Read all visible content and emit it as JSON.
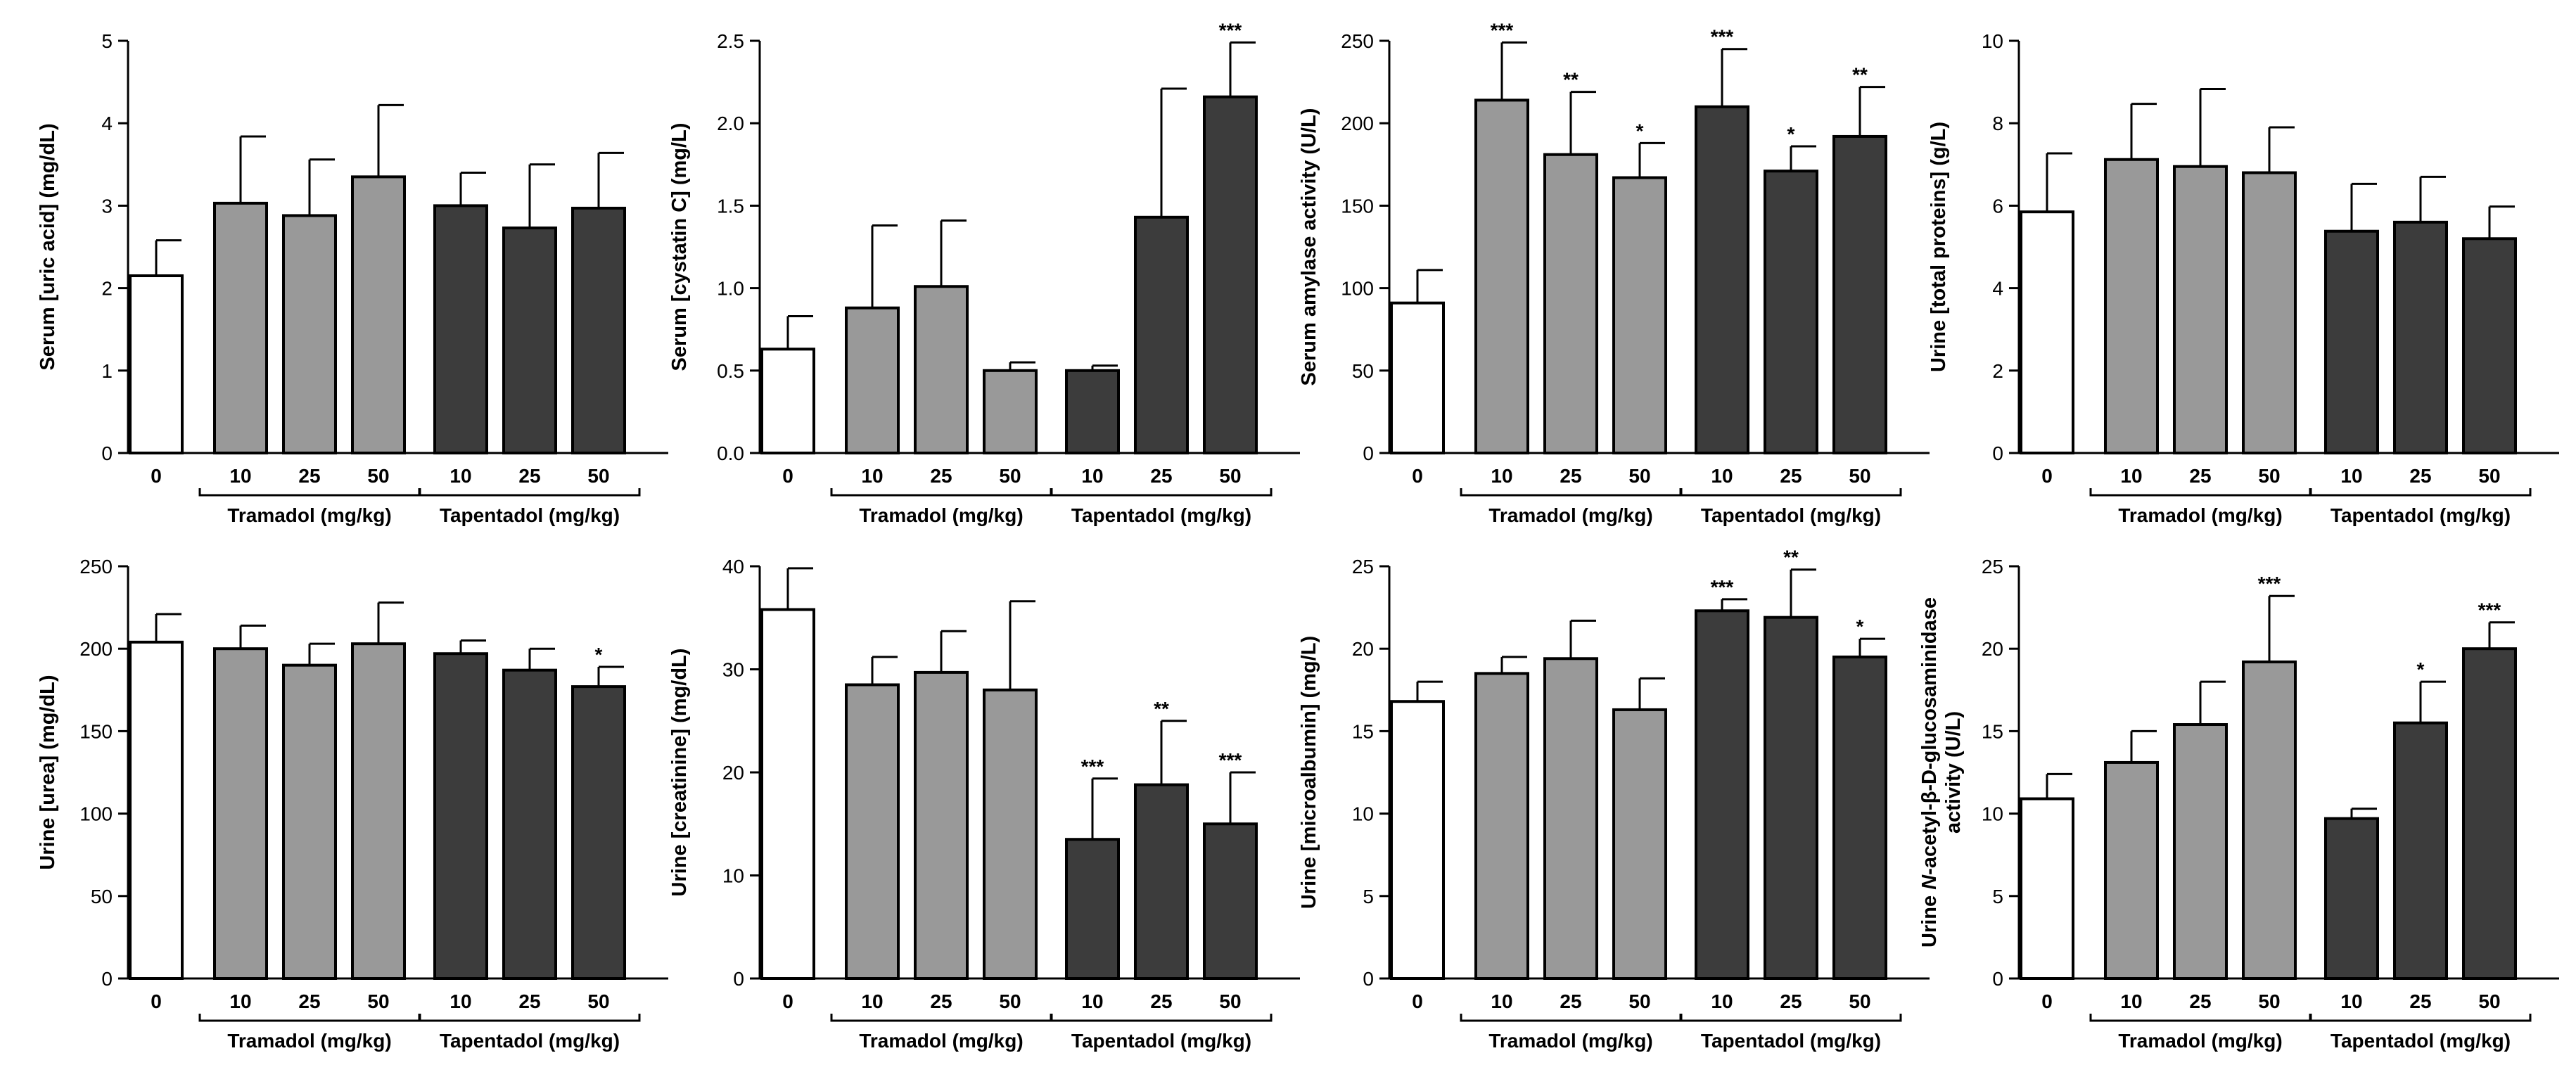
{
  "colors": {
    "control": "#ffffff",
    "tramadol": "#999999",
    "tapentadol": "#3c3c3c",
    "stroke": "#000000"
  },
  "chart_data": [
    {
      "type": "bar",
      "ylabel": "Serum [uric acid] (mg/dL)",
      "ylim": [
        0,
        5
      ],
      "yticks": [
        0,
        1,
        2,
        3,
        4,
        5
      ],
      "categories": [
        "0",
        "10",
        "25",
        "50",
        "10",
        "25",
        "50"
      ],
      "groups": [
        "control",
        "tramadol",
        "tramadol",
        "tramadol",
        "tapentadol",
        "tapentadol",
        "tapentadol"
      ],
      "values": [
        2.15,
        3.03,
        2.88,
        3.35,
        3.0,
        2.73,
        2.97
      ],
      "errors": [
        0.43,
        0.81,
        0.68,
        0.87,
        0.4,
        0.77,
        0.67
      ],
      "significance": [
        "",
        "",
        "",
        "",
        "",
        "",
        ""
      ],
      "group_labels": [
        "Tramadol (mg/kg)",
        "Tapentadol (mg/kg)"
      ]
    },
    {
      "type": "bar",
      "ylabel": "Serum [cystatin C] (mg/L)",
      "ylim": [
        0,
        2.5
      ],
      "yticks": [
        "0.0",
        "0.5",
        "1.0",
        "1.5",
        "2.0",
        "2.5"
      ],
      "categories": [
        "0",
        "10",
        "25",
        "50",
        "10",
        "25",
        "50"
      ],
      "groups": [
        "control",
        "tramadol",
        "tramadol",
        "tramadol",
        "tapentadol",
        "tapentadol",
        "tapentadol"
      ],
      "values": [
        0.63,
        0.88,
        1.01,
        0.5,
        0.5,
        1.43,
        2.16
      ],
      "errors": [
        0.2,
        0.5,
        0.4,
        0.05,
        0.03,
        0.78,
        0.33
      ],
      "significance": [
        "",
        "",
        "",
        "",
        "",
        "",
        "***"
      ],
      "group_labels": [
        "Tramadol (mg/kg)",
        "Tapentadol (mg/kg)"
      ]
    },
    {
      "type": "bar",
      "ylabel": "Serum amylase activity (U/L)",
      "ylim": [
        0,
        250
      ],
      "yticks": [
        0,
        50,
        100,
        150,
        200,
        250
      ],
      "categories": [
        "0",
        "10",
        "25",
        "50",
        "10",
        "25",
        "50"
      ],
      "groups": [
        "control",
        "tramadol",
        "tramadol",
        "tramadol",
        "tapentadol",
        "tapentadol",
        "tapentadol"
      ],
      "values": [
        91,
        214,
        181,
        167,
        210,
        171,
        192
      ],
      "errors": [
        20,
        35,
        38,
        21,
        35,
        15,
        30
      ],
      "significance": [
        "",
        "***",
        "**",
        "*",
        "***",
        "*",
        "**"
      ],
      "group_labels": [
        "Tramadol (mg/kg)",
        "Tapentadol (mg/kg)"
      ]
    },
    {
      "type": "bar",
      "ylabel": "Urine [total proteins] (g/L)",
      "ylim": [
        0,
        10
      ],
      "yticks": [
        0,
        2,
        4,
        6,
        8,
        10
      ],
      "categories": [
        "0",
        "10",
        "25",
        "50",
        "10",
        "25",
        "50"
      ],
      "groups": [
        "control",
        "tramadol",
        "tramadol",
        "tramadol",
        "tapentadol",
        "tapentadol",
        "tapentadol"
      ],
      "values": [
        5.85,
        7.12,
        6.95,
        6.8,
        5.38,
        5.6,
        5.2
      ],
      "errors": [
        1.42,
        1.35,
        1.88,
        1.1,
        1.15,
        1.1,
        0.78
      ],
      "significance": [
        "",
        "",
        "",
        "",
        "",
        "",
        ""
      ],
      "group_labels": [
        "Tramadol (mg/kg)",
        "Tapentadol (mg/kg)"
      ]
    },
    {
      "type": "bar",
      "ylabel": "Urine [urea] (mg/dL)",
      "ylim": [
        0,
        250
      ],
      "yticks": [
        0,
        50,
        100,
        150,
        200,
        250
      ],
      "categories": [
        "0",
        "10",
        "25",
        "50",
        "10",
        "25",
        "50"
      ],
      "groups": [
        "control",
        "tramadol",
        "tramadol",
        "tramadol",
        "tapentadol",
        "tapentadol",
        "tapentadol"
      ],
      "values": [
        204,
        200,
        190,
        203,
        197,
        187,
        177
      ],
      "errors": [
        17,
        14,
        13,
        25,
        8,
        13,
        12
      ],
      "significance": [
        "",
        "",
        "",
        "",
        "",
        "",
        "*"
      ],
      "group_labels": [
        "Tramadol (mg/kg)",
        "Tapentadol (mg/kg)"
      ]
    },
    {
      "type": "bar",
      "ylabel": "Urine [creatinine] (mg/dL)",
      "ylim": [
        0,
        40
      ],
      "yticks": [
        0,
        10,
        20,
        30,
        40
      ],
      "categories": [
        "0",
        "10",
        "25",
        "50",
        "10",
        "25",
        "50"
      ],
      "groups": [
        "control",
        "tramadol",
        "tramadol",
        "tramadol",
        "tapentadol",
        "tapentadol",
        "tapentadol"
      ],
      "values": [
        35.8,
        28.5,
        29.7,
        28.0,
        13.5,
        18.8,
        15.0
      ],
      "errors": [
        4.0,
        2.7,
        4.0,
        8.6,
        5.9,
        6.2,
        5.0
      ],
      "significance": [
        "",
        "",
        "",
        "",
        "***",
        "**",
        "***"
      ],
      "group_labels": [
        "Tramadol (mg/kg)",
        "Tapentadol (mg/kg)"
      ]
    },
    {
      "type": "bar",
      "ylabel": "Urine [microalbumin] (mg/L)",
      "ylim": [
        0,
        25
      ],
      "yticks": [
        0,
        5,
        10,
        15,
        20,
        25
      ],
      "categories": [
        "0",
        "10",
        "25",
        "50",
        "10",
        "25",
        "50"
      ],
      "groups": [
        "control",
        "tramadol",
        "tramadol",
        "tramadol",
        "tapentadol",
        "tapentadol",
        "tapentadol"
      ],
      "values": [
        16.8,
        18.5,
        19.4,
        16.3,
        22.3,
        21.9,
        19.5
      ],
      "errors": [
        1.2,
        1.0,
        2.3,
        1.9,
        0.7,
        2.9,
        1.1
      ],
      "significance": [
        "",
        "",
        "",
        "",
        "***",
        "**",
        "*"
      ],
      "group_labels": [
        "Tramadol (mg/kg)",
        "Tapentadol (mg/kg)"
      ]
    },
    {
      "type": "bar",
      "ylabel_parts": [
        "Urine ",
        "N",
        "-acetyl-β-D-glucosaminidase"
      ],
      "ylabel_line2": "activity (U/L)",
      "ylim": [
        0,
        25
      ],
      "yticks": [
        0,
        5,
        10,
        15,
        20,
        25
      ],
      "categories": [
        "0",
        "10",
        "25",
        "50",
        "10",
        "25",
        "50"
      ],
      "groups": [
        "control",
        "tramadol",
        "tramadol",
        "tramadol",
        "tapentadol",
        "tapentadol",
        "tapentadol"
      ],
      "values": [
        10.9,
        13.1,
        15.4,
        19.2,
        9.7,
        15.5,
        20.0
      ],
      "errors": [
        1.5,
        1.9,
        2.6,
        4.0,
        0.6,
        2.5,
        1.6
      ],
      "significance": [
        "",
        "",
        "",
        "***",
        "",
        "*",
        "***"
      ],
      "group_labels": [
        "Tramadol (mg/kg)",
        "Tapentadol (mg/kg)"
      ]
    }
  ]
}
